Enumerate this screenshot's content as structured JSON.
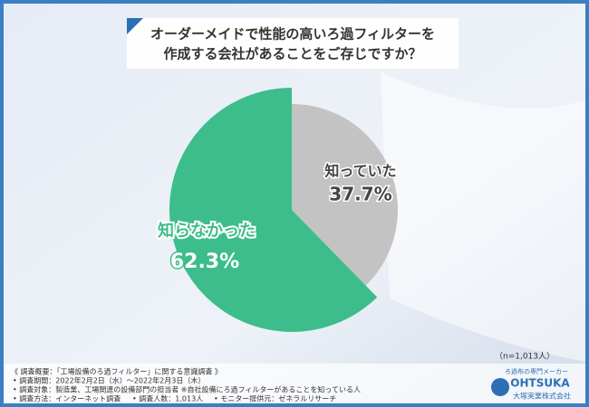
{
  "chart_data": {
    "type": "pie",
    "title": [
      "オーダーメイドで性能の高いろ過フィルターを",
      "作成する会社があることをご存じですか？"
    ],
    "categories": [
      "知っていた",
      "知らなかった"
    ],
    "values": [
      37.7,
      62.3
    ],
    "value_labels": [
      "37.7%",
      "62.3%"
    ],
    "colors": [
      "#c3c3c3",
      "#3dbd8b"
    ],
    "note": "（n=1,013人）"
  },
  "survey": {
    "heading": "《 調査概要：「工場設備のろ過フィルター」に関する意識調査 》",
    "items": [
      "• 調査期間：2022年2月2日（水）～2022年2月3日（木）",
      "• 調査対象：製造業、工場関連の設備部門の担当者 ※自社設備にろ過フィルターがあることを知っている人",
      "• 調査方法：インターネット調査",
      "• 調査人数：1,013人",
      "• モニター提供元：ゼネラルリサーチ"
    ]
  },
  "logo": {
    "tagline": "ろ過布の専門メーカー",
    "brand": "OHTSUKA",
    "company": "大塚実業株式会社"
  }
}
